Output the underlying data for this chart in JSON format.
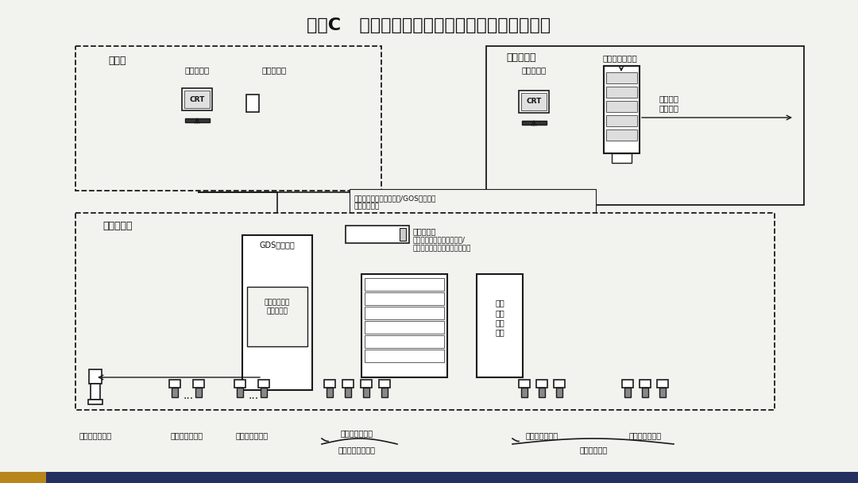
{
  "title": "附录C   可燃气体和有毒气体检测报警系统配置图",
  "bg": "#f2f2ee",
  "lc": "#1a1a1a",
  "tc": "#111111",
  "bar_dark": "#243060",
  "bar_gold": "#b8861a",
  "ctrl_room_label": "控制室",
  "display_station": "显示操作站",
  "sound_alarm": "声光警报器",
  "fire_ctrl_room": "消防控制室",
  "fire_alarm_ctrl": "火灾报警控制器",
  "fire_linked_signal": "消防联动\n控制信号",
  "site_cabinet_room": "现场机柜室",
  "gds_cabinet": "GDS系统机柜",
  "dedicated_ctrl": "专用可燃气体\n报警控制器",
  "pgm_switch": "程控交换机",
  "pgm_signal1": "可燃气体消防联动报警信号/",
  "pgm_signal2": "专用可燃气体报警控制故障信号",
  "safety_inst": "安全\n仪表\n系统\n机柜",
  "signal_line1": "可燃气体第二级报警信号/GOS报警控制",
  "signal_line2": "单元故障信号",
  "site_alarm": "现场区域警报器",
  "comb_detector1": "可燃气体探测器",
  "toxic_detector1": "有毒气体探测器",
  "comb_detector2": "可燃气体探测器",
  "fire_signal_label": "消防联动报警信号",
  "comb_detector3": "可燃气体探测器",
  "toxic_detector2": "有毒气体探测器",
  "safety_signal_label": "安全联锁信号"
}
